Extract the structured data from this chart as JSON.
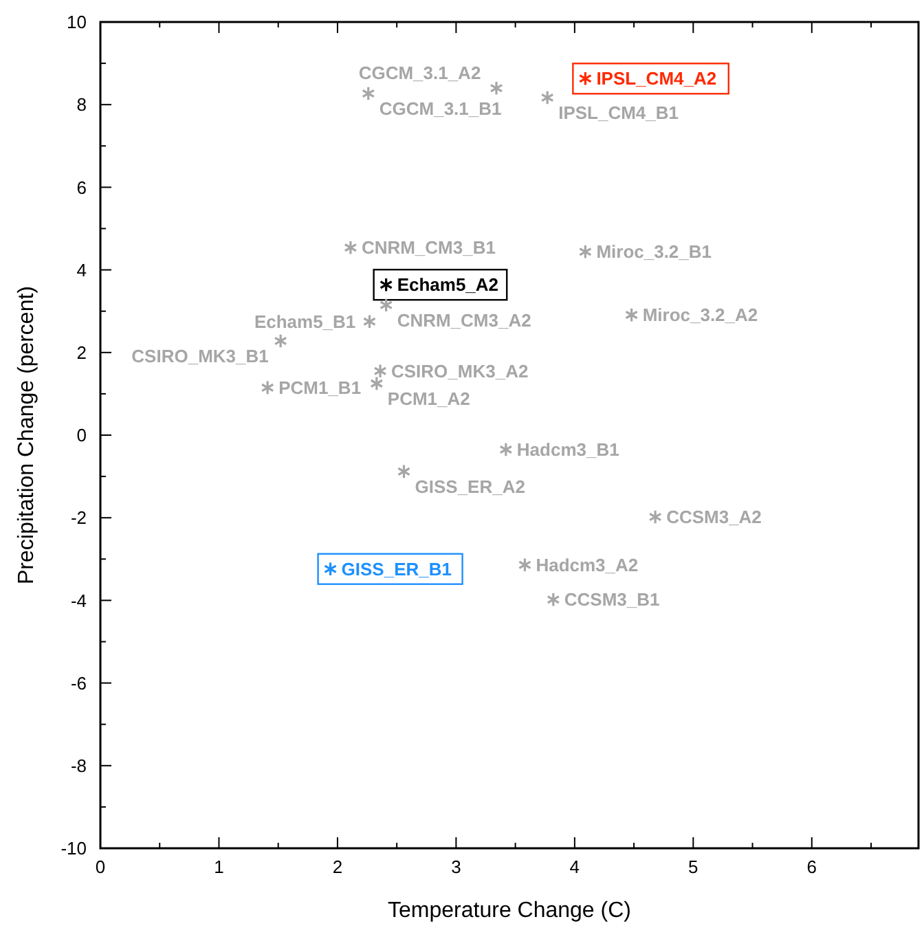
{
  "chart_data": {
    "type": "scatter",
    "xlabel": "Temperature Change (C)",
    "ylabel": "Precipitation Change (percent)",
    "xlim": [
      0,
      6.9
    ],
    "ylim": [
      -10,
      10
    ],
    "xticks": [
      0,
      {
        "value": 0.5,
        "label": null
      },
      1,
      {
        "value": 1.5,
        "label": null
      },
      2,
      {
        "value": 2.5,
        "label": null
      },
      3,
      {
        "value": 3.5,
        "label": null
      },
      4,
      {
        "value": 4.5,
        "label": null
      },
      5,
      {
        "value": 5.5,
        "label": null
      },
      6,
      {
        "value": 6.5,
        "label": null
      }
    ],
    "yticks": [
      -10,
      {
        "value": -9,
        "label": null
      },
      -8,
      {
        "value": -7,
        "label": null
      },
      -6,
      {
        "value": -5,
        "label": null
      },
      -4,
      {
        "value": -3,
        "label": null
      },
      -2,
      {
        "value": -1,
        "label": null
      },
      0,
      {
        "value": 1,
        "label": null
      },
      2,
      {
        "value": 3,
        "label": null
      },
      4,
      {
        "value": 5,
        "label": null
      },
      6,
      {
        "value": 7,
        "label": null
      },
      8,
      {
        "value": 9,
        "label": null
      },
      10
    ],
    "grid": false,
    "marker": "cross",
    "series": [
      {
        "name": "CGCM_3.1_B1",
        "color": "#a6a6a6",
        "x": [
          2.26
        ],
        "values": [
          8.27
        ]
      },
      {
        "name": "CGCM_3.1_A2",
        "color": "#a6a6a6",
        "x": [
          3.34
        ],
        "values": [
          8.4
        ]
      },
      {
        "name": "IPSL_CM4_B1",
        "color": "#a6a6a6",
        "x": [
          3.77
        ],
        "values": [
          8.17
        ]
      },
      {
        "name": "IPSL_CM4_A2",
        "color": "#ff2a00",
        "x": [
          4.09
        ],
        "values": [
          8.63
        ]
      },
      {
        "name": "CNRM_CM3_B1",
        "color": "#a6a6a6",
        "x": [
          2.11
        ],
        "values": [
          4.54
        ]
      },
      {
        "name": "Miroc_3.2_B1",
        "color": "#a6a6a6",
        "x": [
          4.09
        ],
        "values": [
          4.44
        ]
      },
      {
        "name": "Echam5_A2",
        "color": "#000000",
        "x": [
          2.41
        ],
        "values": [
          3.64
        ]
      },
      {
        "name": "CNRM_CM3_A2",
        "color": "#a6a6a6",
        "x": [
          2.41
        ],
        "values": [
          3.15
        ]
      },
      {
        "name": "Miroc_3.2_A2",
        "color": "#a6a6a6",
        "x": [
          4.48
        ],
        "values": [
          2.91
        ]
      },
      {
        "name": "Echam5_B1",
        "color": "#a6a6a6",
        "x": [
          2.27
        ],
        "values": [
          2.75
        ]
      },
      {
        "name": "CSIRO_MK3_B1",
        "color": "#a6a6a6",
        "x": [
          1.52
        ],
        "values": [
          2.28
        ]
      },
      {
        "name": "CSIRO_MK3_A2",
        "color": "#a6a6a6",
        "x": [
          2.36
        ],
        "values": [
          1.55
        ]
      },
      {
        "name": "PCM1_B1",
        "color": "#a6a6a6",
        "x": [
          1.41
        ],
        "values": [
          1.15
        ]
      },
      {
        "name": "PCM1_A2",
        "color": "#a6a6a6",
        "x": [
          2.33
        ],
        "values": [
          1.25
        ]
      },
      {
        "name": "Hadcm3_B1",
        "color": "#a6a6a6",
        "x": [
          3.42
        ],
        "values": [
          -0.35
        ]
      },
      {
        "name": "GISS_ER_A2",
        "color": "#a6a6a6",
        "x": [
          2.56
        ],
        "values": [
          -0.88
        ]
      },
      {
        "name": "CCSM3_A2",
        "color": "#a6a6a6",
        "x": [
          4.68
        ],
        "values": [
          -1.98
        ]
      },
      {
        "name": "GISS_ER_B1",
        "color": "#1e90ff",
        "x": [
          1.94
        ],
        "values": [
          -3.24
        ]
      },
      {
        "name": "Hadcm3_A2",
        "color": "#a6a6a6",
        "x": [
          3.58
        ],
        "values": [
          -3.14
        ]
      },
      {
        "name": "CCSM3_B1",
        "color": "#a6a6a6",
        "x": [
          3.82
        ],
        "values": [
          -3.98
        ]
      }
    ]
  }
}
